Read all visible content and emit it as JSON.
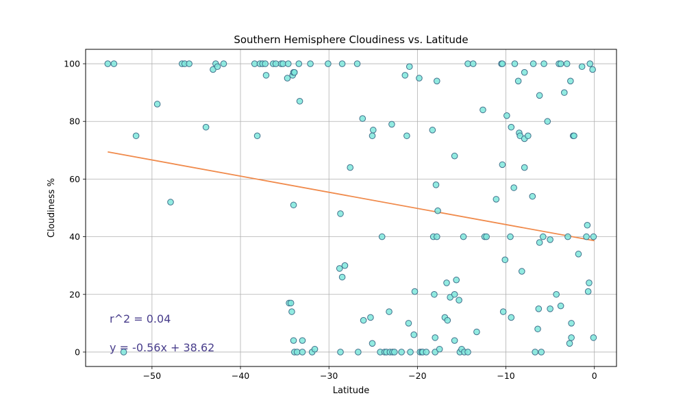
{
  "chart_data": {
    "type": "scatter",
    "title": "Southern Hemisphere Cloudiness vs. Latitude",
    "xlabel": "Latitude",
    "ylabel": "Cloudiness %",
    "xlim": [
      -57.5,
      2.5
    ],
    "ylim": [
      -5,
      105
    ],
    "xticks": [
      -50,
      -40,
      -30,
      -20,
      -10,
      0
    ],
    "yticks": [
      0,
      20,
      40,
      60,
      80,
      100
    ],
    "grid": true,
    "colors": {
      "marker_fill": "#7fe7dc",
      "marker_edge": "#3f6f8a",
      "regression_line": "#f08a4b",
      "annotation": "#483d8b"
    },
    "regression": {
      "slope": -0.56,
      "intercept": 38.62,
      "x_range": [
        -55,
        0
      ]
    },
    "annotations": [
      "r^2 = 0.04",
      "y = -0.56x + 38.62"
    ],
    "points": [
      {
        "x": -55,
        "y": 100
      },
      {
        "x": -54.3,
        "y": 100
      },
      {
        "x": -53.2,
        "y": 0
      },
      {
        "x": -51.8,
        "y": 75
      },
      {
        "x": -49.4,
        "y": 86
      },
      {
        "x": -47.9,
        "y": 52
      },
      {
        "x": -46.6,
        "y": 100
      },
      {
        "x": -46.3,
        "y": 100
      },
      {
        "x": -45.8,
        "y": 100
      },
      {
        "x": -43.9,
        "y": 78
      },
      {
        "x": -43.1,
        "y": 98
      },
      {
        "x": -42.8,
        "y": 100
      },
      {
        "x": -42.6,
        "y": 99
      },
      {
        "x": -41.9,
        "y": 100
      },
      {
        "x": -38.4,
        "y": 100
      },
      {
        "x": -38.1,
        "y": 75
      },
      {
        "x": -37.8,
        "y": 100
      },
      {
        "x": -37.5,
        "y": 100
      },
      {
        "x": -37.2,
        "y": 100
      },
      {
        "x": -37.1,
        "y": 96
      },
      {
        "x": -36.3,
        "y": 100
      },
      {
        "x": -36,
        "y": 100
      },
      {
        "x": -35.4,
        "y": 100
      },
      {
        "x": -35.2,
        "y": 100
      },
      {
        "x": -34.7,
        "y": 95
      },
      {
        "x": -34.6,
        "y": 100
      },
      {
        "x": -34.5,
        "y": 17
      },
      {
        "x": -34.3,
        "y": 17
      },
      {
        "x": -34.2,
        "y": 14
      },
      {
        "x": -34.1,
        "y": 96
      },
      {
        "x": -34,
        "y": 97
      },
      {
        "x": -33.9,
        "y": 97
      },
      {
        "x": -34,
        "y": 51
      },
      {
        "x": -34,
        "y": 4
      },
      {
        "x": -33.9,
        "y": 0
      },
      {
        "x": -33.6,
        "y": 0
      },
      {
        "x": -33.4,
        "y": 100
      },
      {
        "x": -33.3,
        "y": 87
      },
      {
        "x": -33,
        "y": 4
      },
      {
        "x": -33,
        "y": 0
      },
      {
        "x": -32.1,
        "y": 100
      },
      {
        "x": -31.9,
        "y": 0
      },
      {
        "x": -31.6,
        "y": 1
      },
      {
        "x": -30.1,
        "y": 100
      },
      {
        "x": -28.8,
        "y": 29
      },
      {
        "x": -28.7,
        "y": 48
      },
      {
        "x": -28.7,
        "y": 0
      },
      {
        "x": -28.5,
        "y": 26
      },
      {
        "x": -28.5,
        "y": 100
      },
      {
        "x": -28.2,
        "y": 30
      },
      {
        "x": -27.6,
        "y": 64
      },
      {
        "x": -26.8,
        "y": 100
      },
      {
        "x": -26.7,
        "y": 0
      },
      {
        "x": -26.2,
        "y": 81
      },
      {
        "x": -26.1,
        "y": 11
      },
      {
        "x": -25.3,
        "y": 12
      },
      {
        "x": -25.1,
        "y": 75
      },
      {
        "x": -25.1,
        "y": 3
      },
      {
        "x": -25,
        "y": 77
      },
      {
        "x": -24.2,
        "y": 0
      },
      {
        "x": -24,
        "y": 40
      },
      {
        "x": -23.7,
        "y": 0
      },
      {
        "x": -23.5,
        "y": 0
      },
      {
        "x": -23.2,
        "y": 14
      },
      {
        "x": -23.1,
        "y": 0
      },
      {
        "x": -22.9,
        "y": 79
      },
      {
        "x": -22.8,
        "y": 0
      },
      {
        "x": -22.6,
        "y": 0
      },
      {
        "x": -21.8,
        "y": 0
      },
      {
        "x": -21.4,
        "y": 96
      },
      {
        "x": -21.2,
        "y": 75
      },
      {
        "x": -21,
        "y": 10
      },
      {
        "x": -20.9,
        "y": 99
      },
      {
        "x": -20.8,
        "y": 0
      },
      {
        "x": -20.4,
        "y": 6
      },
      {
        "x": -20.3,
        "y": 21
      },
      {
        "x": -19.8,
        "y": 95
      },
      {
        "x": -19.7,
        "y": 0
      },
      {
        "x": -19.5,
        "y": 0
      },
      {
        "x": -19.4,
        "y": 0
      },
      {
        "x": -19,
        "y": 0
      },
      {
        "x": -18.3,
        "y": 77
      },
      {
        "x": -18.2,
        "y": 40
      },
      {
        "x": -18.1,
        "y": 20
      },
      {
        "x": -18,
        "y": 5
      },
      {
        "x": -18,
        "y": 0
      },
      {
        "x": -17.9,
        "y": 58
      },
      {
        "x": -17.8,
        "y": 40
      },
      {
        "x": -17.8,
        "y": 94
      },
      {
        "x": -17.7,
        "y": 49
      },
      {
        "x": -17.5,
        "y": 1
      },
      {
        "x": -16.9,
        "y": 12
      },
      {
        "x": -16.7,
        "y": 24
      },
      {
        "x": -16.6,
        "y": 11
      },
      {
        "x": -16.3,
        "y": 19
      },
      {
        "x": -15.8,
        "y": 68
      },
      {
        "x": -15.8,
        "y": 4
      },
      {
        "x": -15.8,
        "y": 20
      },
      {
        "x": -15.6,
        "y": 25
      },
      {
        "x": -15.3,
        "y": 18
      },
      {
        "x": -15.2,
        "y": 0
      },
      {
        "x": -15,
        "y": 1
      },
      {
        "x": -14.8,
        "y": 40
      },
      {
        "x": -14.7,
        "y": 0
      },
      {
        "x": -14.3,
        "y": 0
      },
      {
        "x": -14.3,
        "y": 100
      },
      {
        "x": -13.7,
        "y": 100
      },
      {
        "x": -13.3,
        "y": 7
      },
      {
        "x": -12.6,
        "y": 84
      },
      {
        "x": -12.4,
        "y": 40
      },
      {
        "x": -12.2,
        "y": 40
      },
      {
        "x": -11.1,
        "y": 53
      },
      {
        "x": -10.5,
        "y": 100
      },
      {
        "x": -10.4,
        "y": 100
      },
      {
        "x": -10.4,
        "y": 65
      },
      {
        "x": -10.3,
        "y": 14
      },
      {
        "x": -10.1,
        "y": 32
      },
      {
        "x": -9.9,
        "y": 82
      },
      {
        "x": -9.5,
        "y": 40
      },
      {
        "x": -9.4,
        "y": 78
      },
      {
        "x": -9.4,
        "y": 12
      },
      {
        "x": -9.1,
        "y": 57
      },
      {
        "x": -9,
        "y": 100
      },
      {
        "x": -8.6,
        "y": 94
      },
      {
        "x": -8.5,
        "y": 76
      },
      {
        "x": -8.4,
        "y": 75
      },
      {
        "x": -8.2,
        "y": 28
      },
      {
        "x": -7.9,
        "y": 64
      },
      {
        "x": -7.9,
        "y": 97
      },
      {
        "x": -7.9,
        "y": 74
      },
      {
        "x": -7.5,
        "y": 75
      },
      {
        "x": -7,
        "y": 54
      },
      {
        "x": -6.9,
        "y": 100
      },
      {
        "x": -6.7,
        "y": 0
      },
      {
        "x": -6.4,
        "y": 8
      },
      {
        "x": -6.3,
        "y": 15
      },
      {
        "x": -6.2,
        "y": 38
      },
      {
        "x": -6.2,
        "y": 89
      },
      {
        "x": -6,
        "y": 0
      },
      {
        "x": -5.8,
        "y": 40
      },
      {
        "x": -5.7,
        "y": 100
      },
      {
        "x": -5.3,
        "y": 80
      },
      {
        "x": -5,
        "y": 39
      },
      {
        "x": -5,
        "y": 15
      },
      {
        "x": -4.3,
        "y": 20
      },
      {
        "x": -4,
        "y": 100
      },
      {
        "x": -3.8,
        "y": 100
      },
      {
        "x": -3.8,
        "y": 16
      },
      {
        "x": -3.4,
        "y": 90
      },
      {
        "x": -3.1,
        "y": 100
      },
      {
        "x": -3,
        "y": 40
      },
      {
        "x": -2.8,
        "y": 3
      },
      {
        "x": -2.7,
        "y": 94
      },
      {
        "x": -2.6,
        "y": 10
      },
      {
        "x": -2.6,
        "y": 5
      },
      {
        "x": -2.4,
        "y": 75
      },
      {
        "x": -2.3,
        "y": 75
      },
      {
        "x": -1.8,
        "y": 34
      },
      {
        "x": -1.4,
        "y": 99
      },
      {
        "x": -0.9,
        "y": 40
      },
      {
        "x": -0.8,
        "y": 44
      },
      {
        "x": -0.7,
        "y": 21
      },
      {
        "x": -0.6,
        "y": 24
      },
      {
        "x": -0.5,
        "y": 100
      },
      {
        "x": -0.2,
        "y": 98
      },
      {
        "x": -0.1,
        "y": 40
      },
      {
        "x": -0.1,
        "y": 5
      }
    ]
  }
}
